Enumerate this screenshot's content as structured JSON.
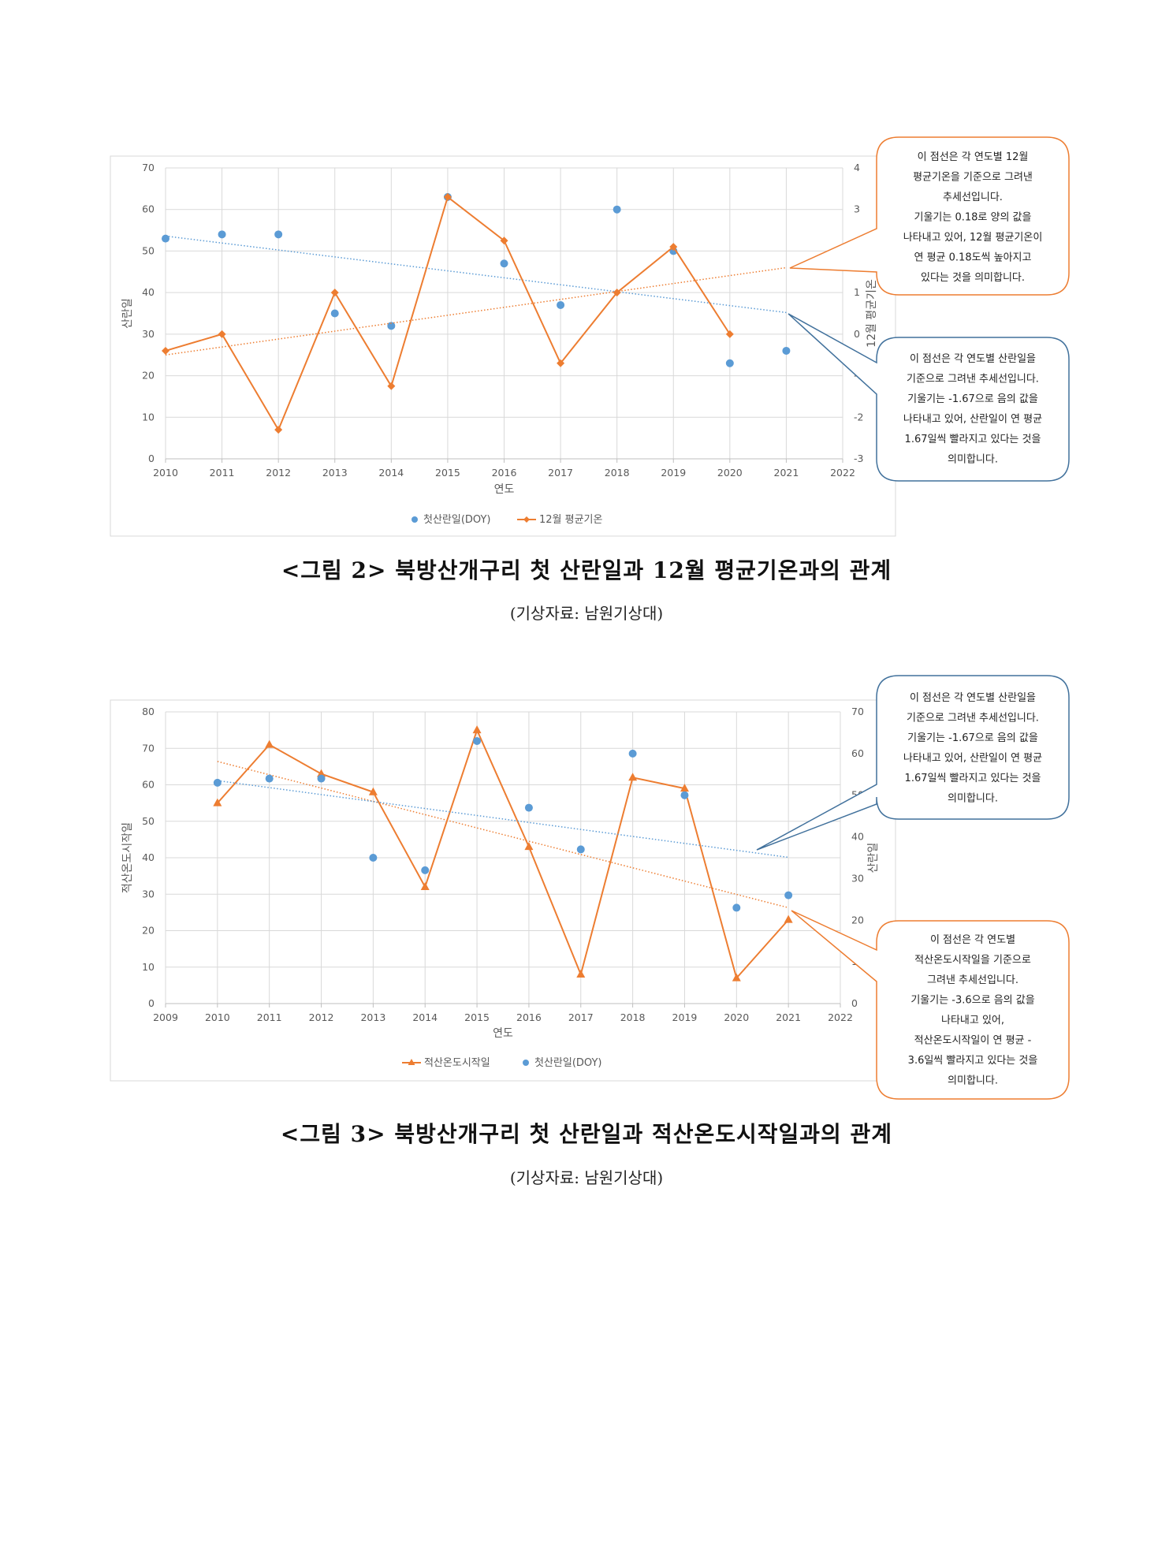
{
  "colors": {
    "blue": "#5B9BD5",
    "orange": "#ED7D31",
    "grid": "#D9D9D9",
    "callout_blue": "#41719C"
  },
  "chart_data": [
    {
      "type": "scatter+line",
      "xlabel": "연도",
      "ylabel_left": "산란일",
      "ylabel_right": "12월 평균기온",
      "xlim": [
        2010,
        2022
      ],
      "ylim_left": [
        0,
        70
      ],
      "ylim_right": [
        -3,
        4
      ],
      "x_ticks": [
        "2010",
        "2011",
        "2012",
        "2013",
        "2014",
        "2015",
        "2016",
        "2017",
        "2018",
        "2019",
        "2020",
        "2021",
        "2022"
      ],
      "y_left_ticks": [
        "0",
        "10",
        "20",
        "30",
        "40",
        "50",
        "60",
        "70"
      ],
      "y_right_ticks": [
        "-3",
        "-2",
        "-1",
        "0",
        "1",
        "2",
        "3",
        "4"
      ],
      "series": [
        {
          "name": "첫산란일(DOY)",
          "type": "scatter",
          "axis": "left",
          "x": [
            2010,
            2011,
            2012,
            2013,
            2014,
            2015,
            2016,
            2017,
            2018,
            2019,
            2020,
            2021
          ],
          "values": [
            53,
            54,
            54,
            35,
            32,
            63,
            47,
            37,
            60,
            50,
            23,
            26
          ],
          "trend": [
            53.6,
            35.2
          ]
        },
        {
          "name": "12월 평균기온",
          "type": "line",
          "axis": "right",
          "x": [
            2010,
            2011,
            2012,
            2013,
            2014,
            2015,
            2016,
            2017,
            2018,
            2019,
            2020
          ],
          "values": [
            -0.4,
            0.0,
            -2.3,
            1.0,
            -1.25,
            3.3,
            2.25,
            -0.7,
            1.0,
            2.1,
            0.0
          ],
          "trend": [
            -0.5,
            1.6
          ]
        }
      ]
    },
    {
      "type": "scatter+line",
      "xlabel": "연도",
      "ylabel_left": "적산온도시작일",
      "ylabel_right": "산란일",
      "xlim": [
        2009,
        2022
      ],
      "ylim_left": [
        0,
        80
      ],
      "ylim_right": [
        0,
        70
      ],
      "x_ticks": [
        "2009",
        "2010",
        "2011",
        "2012",
        "2013",
        "2014",
        "2015",
        "2016",
        "2017",
        "2018",
        "2019",
        "2020",
        "2021",
        "2022"
      ],
      "y_left_ticks": [
        "0",
        "10",
        "20",
        "30",
        "40",
        "50",
        "60",
        "70",
        "80"
      ],
      "y_right_ticks": [
        "0",
        "10",
        "20",
        "30",
        "40",
        "50",
        "60",
        "70"
      ],
      "series": [
        {
          "name": "적산온도시작일",
          "type": "line",
          "axis": "left",
          "x": [
            2010,
            2011,
            2012,
            2013,
            2014,
            2015,
            2016,
            2017,
            2018,
            2019,
            2020,
            2021
          ],
          "values": [
            55,
            71,
            63,
            58,
            32,
            75,
            43,
            8,
            62,
            59,
            7,
            23
          ],
          "trend": [
            66.4,
            26.3
          ]
        },
        {
          "name": "첫산란일(DOY)",
          "type": "scatter",
          "axis": "right",
          "x": [
            2010,
            2011,
            2012,
            2013,
            2014,
            2015,
            2016,
            2017,
            2018,
            2019,
            2020,
            2021
          ],
          "values": [
            53,
            54,
            54,
            35,
            32,
            63,
            47,
            37,
            60,
            50,
            23,
            26
          ],
          "trend": [
            53.5,
            35.1
          ]
        }
      ]
    }
  ],
  "figure2": {
    "caption": "<그림 2> 북방산개구리 첫 산란일과 12월 평균기온과의 관계",
    "source": "(기상자료: 남원기상대)",
    "callout_orange": [
      "이 점선은 각 연도별 12월",
      "평균기온을 기준으로 그려낸",
      "추세선입니다.",
      "기울기는 0.18로 양의 값을",
      "나타내고 있어, 12월 평균기온이",
      "연 평균 0.18도씩 높아지고",
      "있다는 것을 의미합니다."
    ],
    "callout_blue": [
      "이 점선은 각 연도별 산란일을",
      "기준으로 그려낸 추세선입니다.",
      "기울기는 -1.67으로 음의 값을",
      "나타내고 있어, 산란일이 연 평균",
      "1.67일씩 빨라지고 있다는 것을",
      "의미합니다."
    ]
  },
  "figure3": {
    "caption": "<그림 3> 북방산개구리 첫 산란일과 적산온도시작일과의 관계",
    "source": "(기상자료: 남원기상대)",
    "callout_blue": [
      "이 점선은 각 연도별 산란일을",
      "기준으로 그려낸 추세선입니다.",
      "기울기는 -1.67으로 음의 값을",
      "나타내고 있어, 산란일이 연 평균",
      "1.67일씩 빨라지고 있다는 것을",
      "의미합니다."
    ],
    "callout_orange": [
      "이 점선은 각 연도별",
      "적산온도시작일을 기준으로",
      "그려낸 추세선입니다.",
      "기울기는 -3.6으로 음의 값을",
      "나타내고 있어,",
      "적산온도시작일이 연 평균 -",
      "3.6일씩 빨라지고 있다는 것을",
      "의미합니다."
    ]
  }
}
